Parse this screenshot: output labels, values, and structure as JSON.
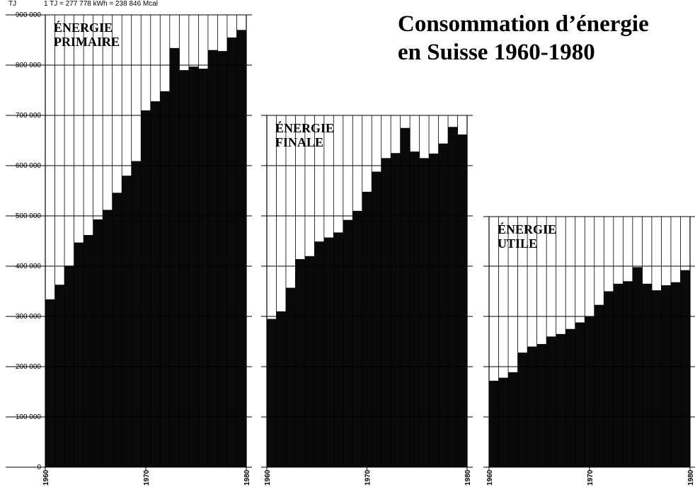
{
  "title_lines": [
    "Consommation d’énergie",
    "en Suisse 1960-1980"
  ],
  "unit": "TJ",
  "conversion": "1 TJ = 277 778 kWh = 238 846 Mcal",
  "colors": {
    "bar": "#0a0a0a",
    "background": "#ffffff",
    "grid": "#000000"
  },
  "chart_data": [
    {
      "type": "bar",
      "label_lines": [
        "ÉNERGIE",
        "PRIMAIRE"
      ],
      "x": [
        1960,
        1961,
        1962,
        1963,
        1964,
        1965,
        1966,
        1967,
        1968,
        1969,
        1970,
        1971,
        1972,
        1973,
        1974,
        1975,
        1976,
        1977,
        1978,
        1979,
        1980
      ],
      "x_tick_labels": [
        "1960",
        "1970",
        "1980"
      ],
      "values": [
        334000,
        363000,
        401000,
        447000,
        462000,
        493000,
        512000,
        546000,
        580000,
        609000,
        710000,
        728000,
        748000,
        834000,
        790000,
        797000,
        793000,
        830000,
        828000,
        855000,
        870000
      ],
      "ylim": [
        0,
        900000
      ],
      "yticks": [
        0,
        100000,
        200000,
        300000,
        400000,
        500000,
        600000,
        700000,
        800000,
        900000
      ],
      "ytick_labels": [
        "0",
        "100 000",
        "200 000",
        "300 000",
        "400 000",
        "500 000",
        "600 000",
        "700 000",
        "800 000",
        "900 000"
      ],
      "grid": true
    },
    {
      "type": "bar",
      "label_lines": [
        "ÉNERGIE",
        "FINALE"
      ],
      "x": [
        1960,
        1961,
        1962,
        1963,
        1964,
        1965,
        1966,
        1967,
        1968,
        1969,
        1970,
        1971,
        1972,
        1973,
        1974,
        1975,
        1976,
        1977,
        1978,
        1979,
        1980
      ],
      "x_tick_labels": [
        "1960",
        "1970",
        "1980"
      ],
      "values": [
        295000,
        310000,
        357000,
        414000,
        420000,
        449000,
        457000,
        467000,
        492000,
        510000,
        548000,
        588000,
        615000,
        625000,
        675000,
        628000,
        615000,
        624000,
        644000,
        677000,
        662000
      ],
      "ylim": [
        0,
        900000
      ],
      "grid": true
    },
    {
      "type": "bar",
      "label_lines": [
        "ÉNERGIE",
        "UTILE"
      ],
      "x": [
        1960,
        1961,
        1962,
        1963,
        1964,
        1965,
        1966,
        1967,
        1968,
        1969,
        1970,
        1971,
        1972,
        1973,
        1974,
        1975,
        1976,
        1977,
        1978,
        1979,
        1980
      ],
      "x_tick_labels": [
        "1960",
        "1970",
        "1980"
      ],
      "values": [
        172000,
        178000,
        189000,
        228000,
        240000,
        245000,
        260000,
        265000,
        275000,
        288000,
        300000,
        323000,
        350000,
        365000,
        370000,
        398000,
        365000,
        352000,
        362000,
        368000,
        392000
      ],
      "ylim": [
        0,
        900000
      ],
      "grid": true
    }
  ]
}
